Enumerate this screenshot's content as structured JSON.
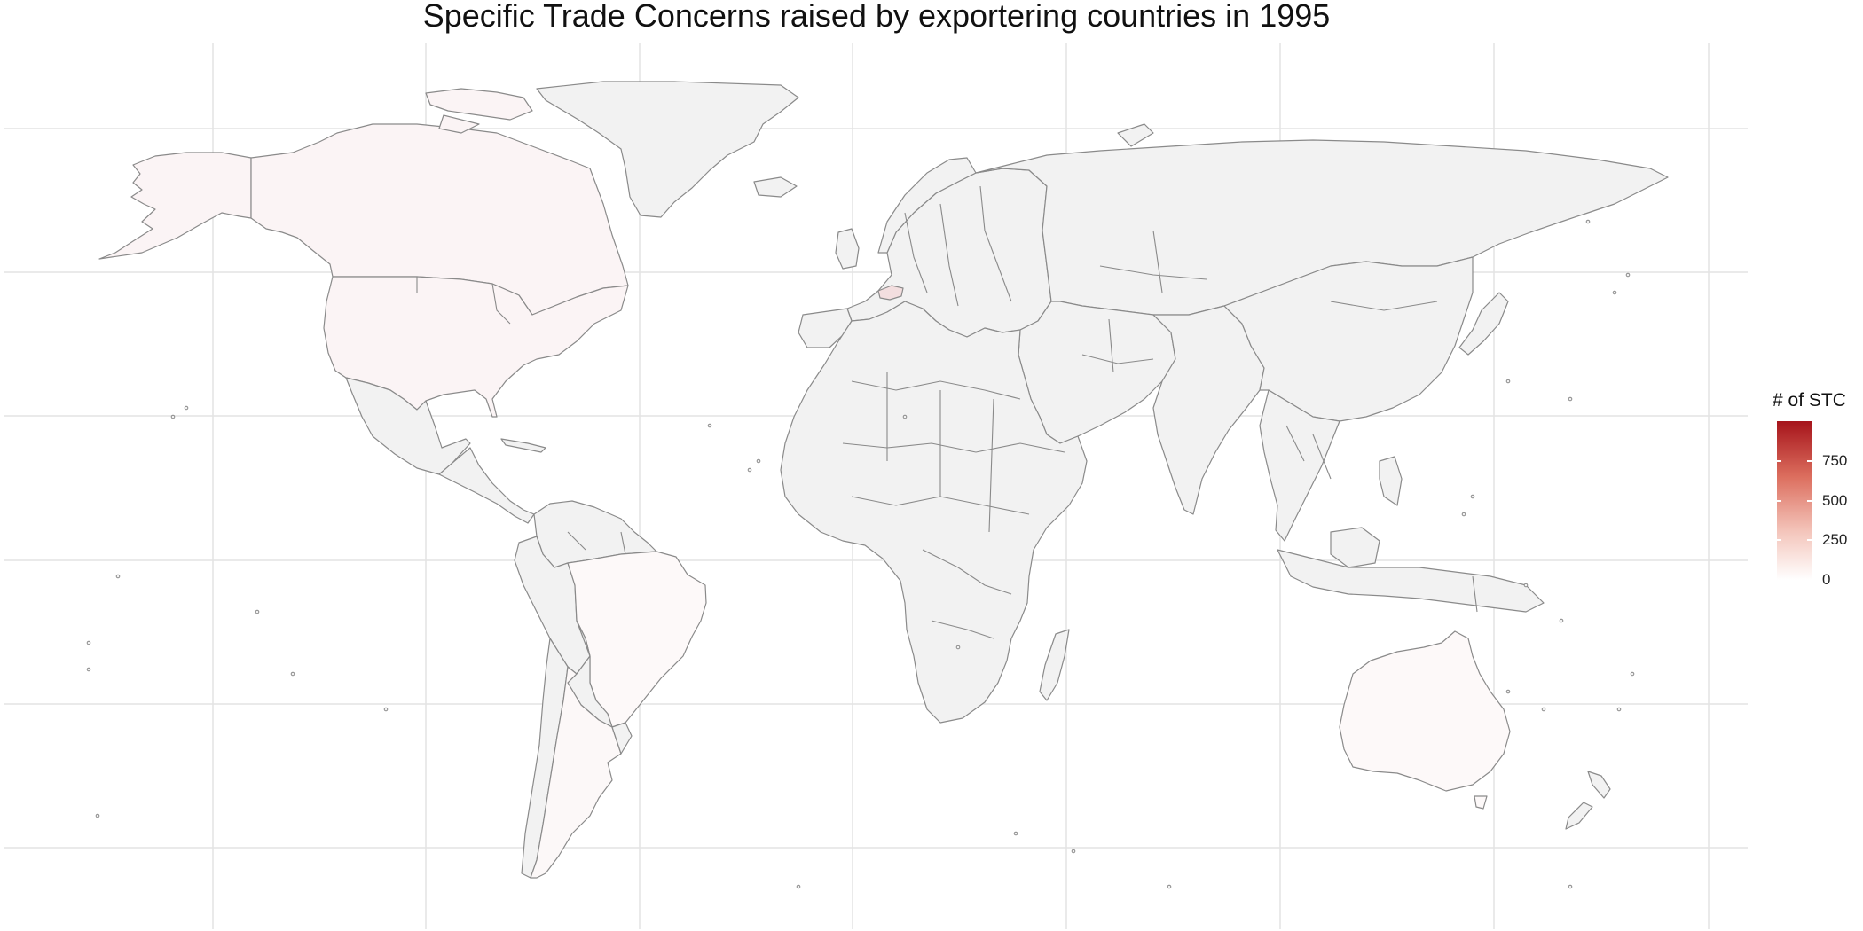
{
  "title": "Specific Trade Concerns raised by exportering countries in 1995",
  "legend": {
    "title": "# of STC",
    "scale_min": 0,
    "scale_max": 1000,
    "breaks": [
      {
        "value": 750,
        "label": "750"
      },
      {
        "value": 500,
        "label": "500"
      },
      {
        "value": 250,
        "label": "250"
      },
      {
        "value": 0,
        "label": "0"
      }
    ],
    "color_low": "#ffffff",
    "color_high": "#a6141b"
  },
  "colors": {
    "no_data": "#f2f2f2",
    "border": "#8a8a8a",
    "gridline": "#e4e4e4",
    "background": "#ffffff"
  },
  "regions": [
    {
      "name": "Canada",
      "value": 45
    },
    {
      "name": "Alaska (United States)",
      "value": 45
    },
    {
      "name": "United States",
      "value": 45
    },
    {
      "name": "Mexico",
      "value": null
    },
    {
      "name": "Greenland",
      "value": null
    },
    {
      "name": "Central America & Caribbean",
      "value": null
    },
    {
      "name": "Colombia, Venezuela & Guianas",
      "value": null
    },
    {
      "name": "Ecuador & Peru",
      "value": null
    },
    {
      "name": "Brazil",
      "value": 25
    },
    {
      "name": "Bolivia & Paraguay",
      "value": null
    },
    {
      "name": "Chile",
      "value": null
    },
    {
      "name": "Argentina",
      "value": 30
    },
    {
      "name": "Uruguay",
      "value": null
    },
    {
      "name": "Switzerland",
      "value": 140
    },
    {
      "name": "Europe",
      "value": null
    },
    {
      "name": "Africa",
      "value": null
    },
    {
      "name": "Madagascar",
      "value": null
    },
    {
      "name": "Middle East",
      "value": null
    },
    {
      "name": "Russia & Central Asia",
      "value": null
    },
    {
      "name": "China & Mongolia",
      "value": null
    },
    {
      "name": "India & South Asia",
      "value": null
    },
    {
      "name": "Southeast Asia",
      "value": null
    },
    {
      "name": "Japan",
      "value": null
    },
    {
      "name": "Indonesia & Papua New Guinea",
      "value": null
    },
    {
      "name": "Australia",
      "value": 25
    },
    {
      "name": "New Zealand",
      "value": null
    }
  ]
}
